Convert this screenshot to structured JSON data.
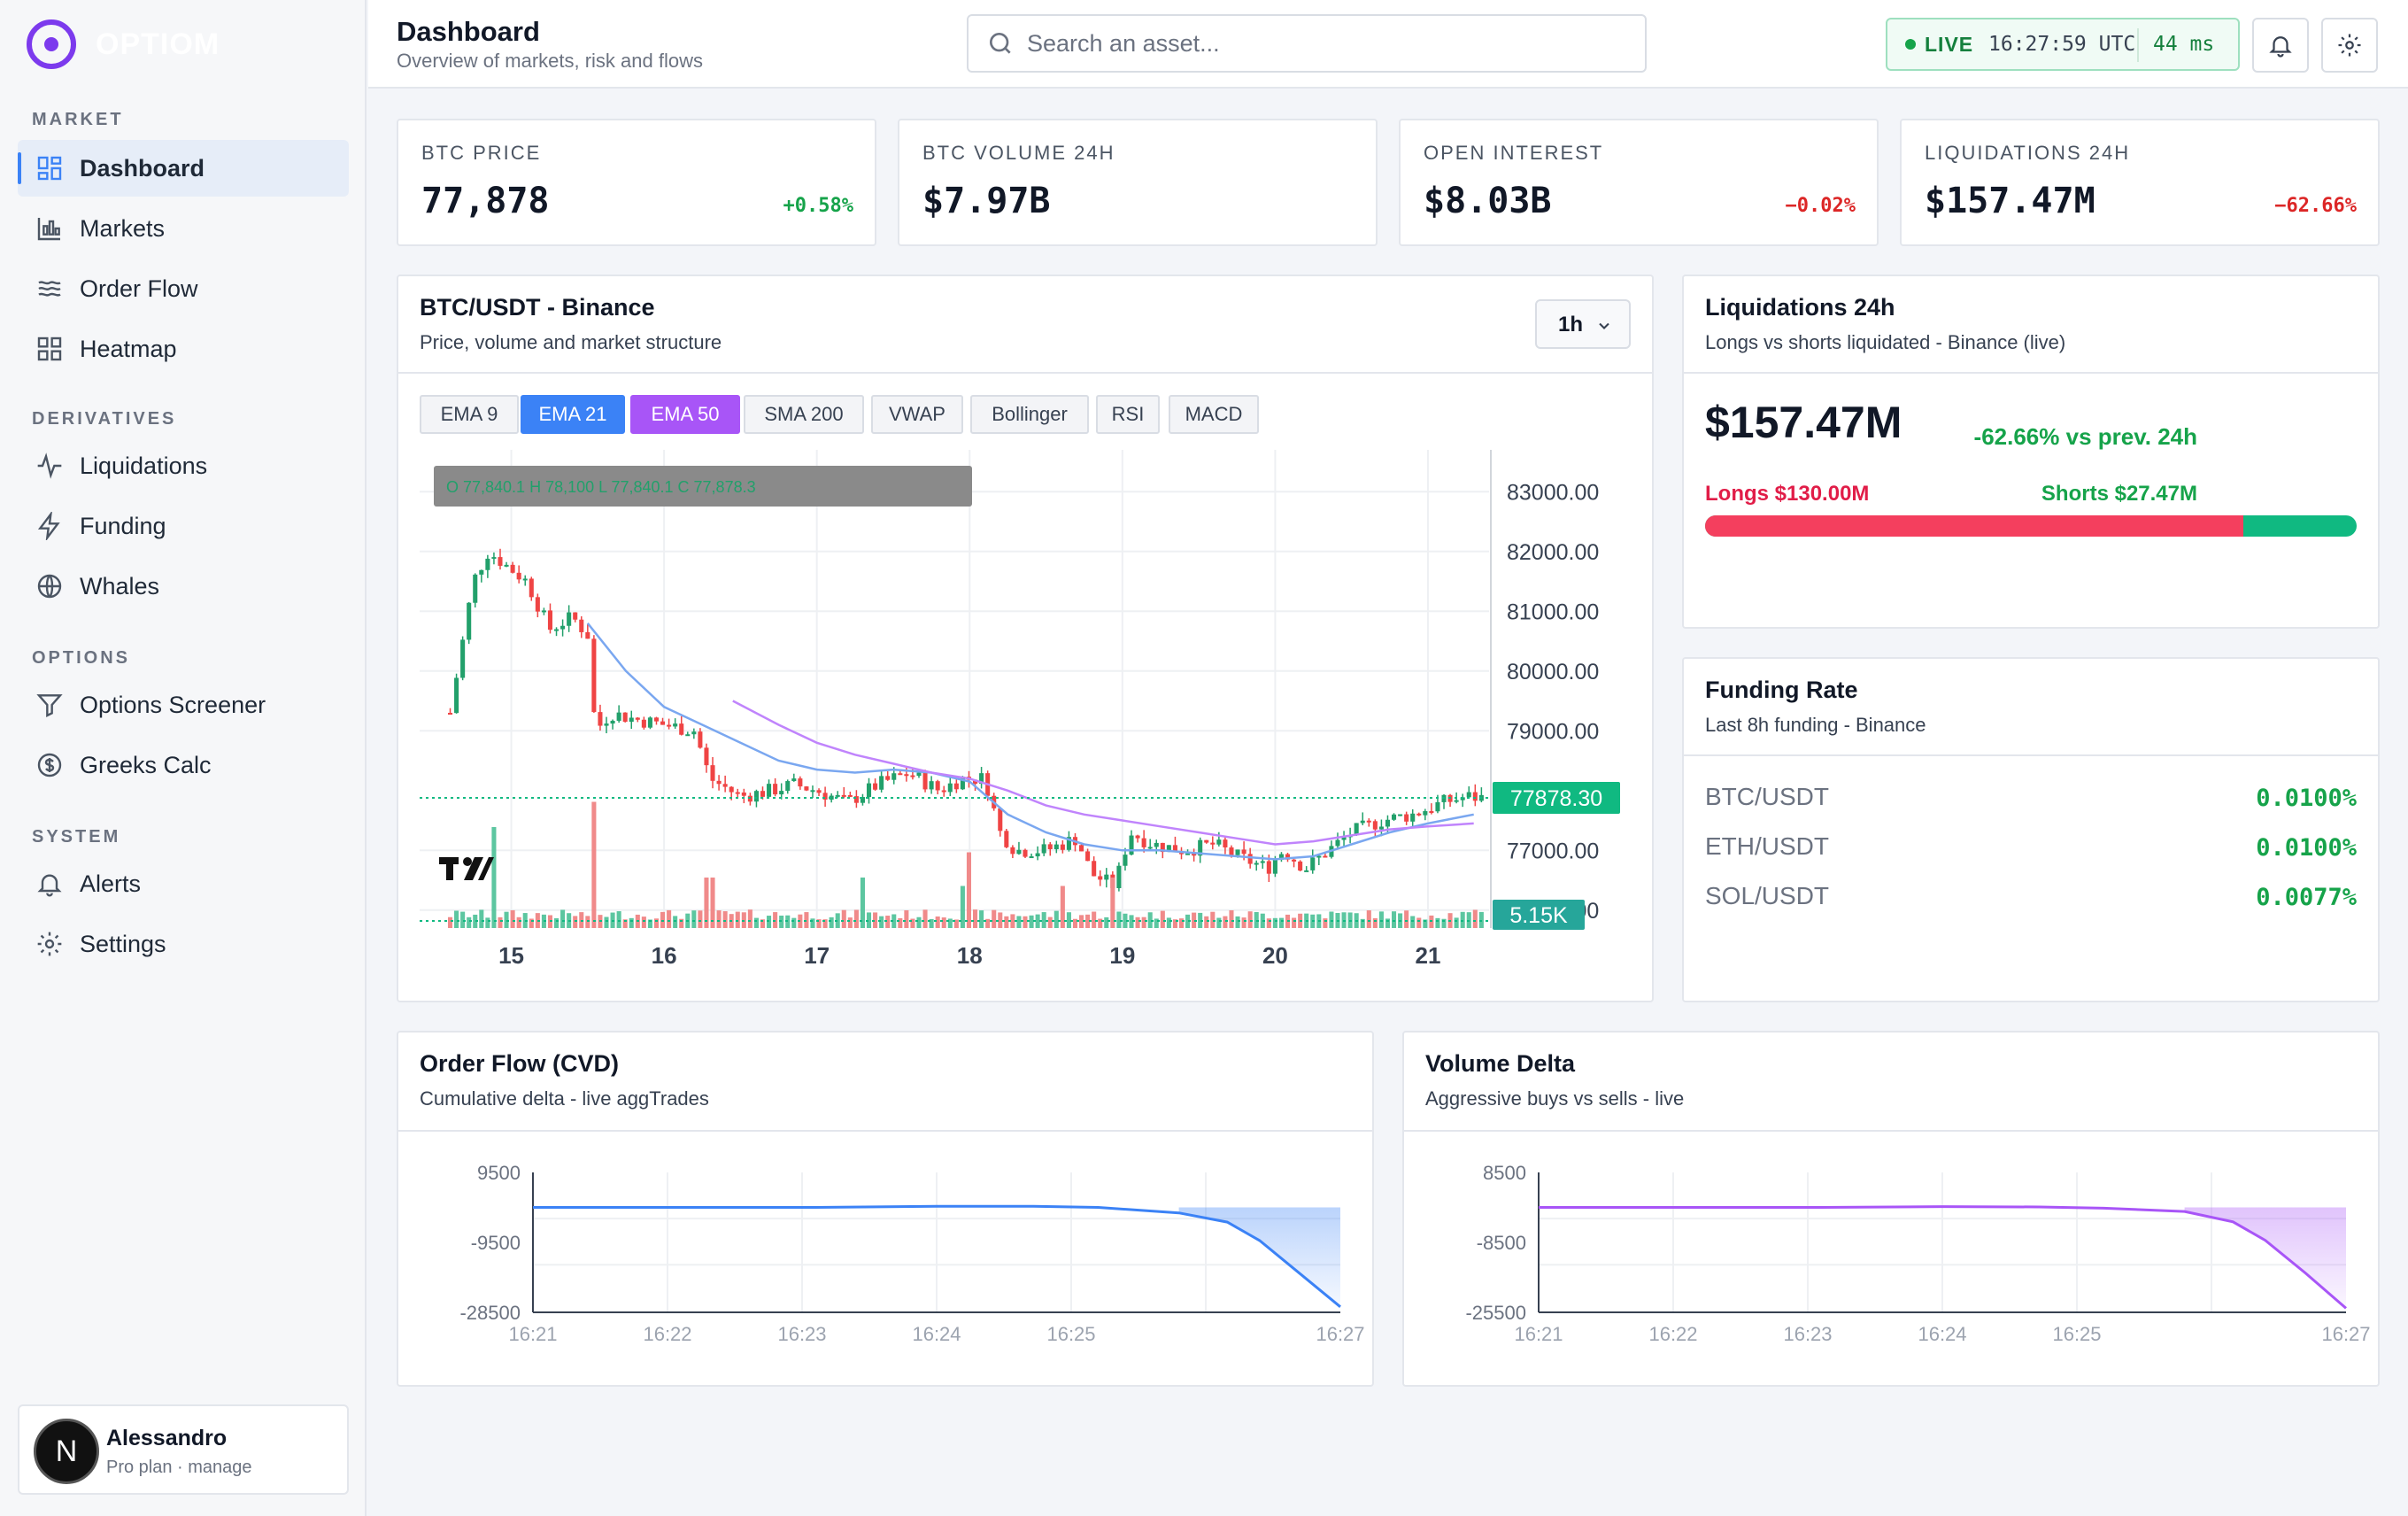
{
  "brand": {
    "name": "OPTIOM"
  },
  "sidebar": {
    "sections": [
      {
        "label": "MARKET",
        "items": [
          {
            "label": "Dashboard",
            "icon": "dashboard-icon"
          },
          {
            "label": "Markets",
            "icon": "chart-icon"
          },
          {
            "label": "Order Flow",
            "icon": "waves-icon"
          },
          {
            "label": "Heatmap",
            "icon": "grid-icon"
          }
        ]
      },
      {
        "label": "DERIVATIVES",
        "items": [
          {
            "label": "Liquidations",
            "icon": "pulse-icon"
          },
          {
            "label": "Funding",
            "icon": "bolt-icon"
          },
          {
            "label": "Whales",
            "icon": "globe-icon"
          }
        ]
      },
      {
        "label": "OPTIONS",
        "items": [
          {
            "label": "Options Screener",
            "icon": "filter-icon"
          },
          {
            "label": "Greeks Calc",
            "icon": "dollar-icon"
          }
        ]
      },
      {
        "label": "SYSTEM",
        "items": [
          {
            "label": "Alerts",
            "icon": "bell-icon"
          },
          {
            "label": "Settings",
            "icon": "gear-icon"
          }
        ]
      }
    ],
    "user": {
      "initial": "N",
      "name": "Alessandro",
      "plan": "Pro plan · manage"
    }
  },
  "header": {
    "title": "Dashboard",
    "subtitle": "Overview of markets, risk and flows",
    "search_placeholder": "Search an asset...",
    "live_label": "LIVE",
    "time": "16:27:59 UTC",
    "latency": "44 ms"
  },
  "stats": [
    {
      "label": "BTC PRICE",
      "value": "77,878",
      "change": "+0.58%",
      "direction": "up"
    },
    {
      "label": "BTC VOLUME 24H",
      "value": "$7.97B",
      "change": "",
      "direction": "up"
    },
    {
      "label": "OPEN INTEREST",
      "value": "$8.03B",
      "change": "−0.02%",
      "direction": "down"
    },
    {
      "label": "LIQUIDATIONS 24H",
      "value": "$157.47M",
      "change": "−62.66%",
      "direction": "down"
    }
  ],
  "price_chart": {
    "title": "BTC/USDT - Binance",
    "subtitle": "Price, volume and market structure",
    "interval": "1h",
    "indicators": [
      {
        "label": "EMA 9",
        "active": false,
        "color": ""
      },
      {
        "label": "EMA 21",
        "active": true,
        "color": "#3b82f6"
      },
      {
        "label": "EMA 50",
        "active": true,
        "color": "#a855f7"
      },
      {
        "label": "SMA 200",
        "active": false,
        "color": ""
      },
      {
        "label": "VWAP",
        "active": false,
        "color": ""
      },
      {
        "label": "Bollinger",
        "active": false,
        "color": ""
      },
      {
        "label": "RSI",
        "active": false,
        "color": ""
      },
      {
        "label": "MACD",
        "active": false,
        "color": ""
      }
    ],
    "ohlc_legend": "O 77,840.1  H 78,100  L 77,840.1  C 77,878.3",
    "last_price_label": "77878.30",
    "last_volume_label": "5.15K",
    "chart_data": {
      "type": "candlestick",
      "y_ticks": [
        "83000.00",
        "82000.00",
        "81000.00",
        "80000.00",
        "79000.00",
        "77000.00",
        "76000.00"
      ],
      "y_range": [
        75700,
        83700
      ],
      "x_ticks": [
        "15",
        "16",
        "17",
        "18",
        "19",
        "20",
        "21"
      ],
      "last_price": 77878.3,
      "close_path": [
        [
          14.6,
          79300
        ],
        [
          14.75,
          81500
        ],
        [
          14.85,
          82000
        ],
        [
          14.95,
          81800
        ],
        [
          15.1,
          81500
        ],
        [
          15.25,
          80700
        ],
        [
          15.4,
          80900
        ],
        [
          15.5,
          80600
        ],
        [
          15.55,
          79000
        ],
        [
          15.65,
          79300
        ],
        [
          15.8,
          79200
        ],
        [
          16.0,
          79100
        ],
        [
          16.2,
          79000
        ],
        [
          16.3,
          78200
        ],
        [
          16.5,
          77900
        ],
        [
          16.7,
          78000
        ],
        [
          16.85,
          78100
        ],
        [
          17.0,
          78000
        ],
        [
          17.2,
          77800
        ],
        [
          17.4,
          78100
        ],
        [
          17.6,
          78300
        ],
        [
          17.8,
          78000
        ],
        [
          17.95,
          78200
        ],
        [
          18.1,
          78200
        ],
        [
          18.2,
          77300
        ],
        [
          18.3,
          77000
        ],
        [
          18.5,
          77000
        ],
        [
          18.7,
          77200
        ],
        [
          18.8,
          76600
        ],
        [
          18.95,
          76400
        ],
        [
          19.05,
          77300
        ],
        [
          19.2,
          77100
        ],
        [
          19.4,
          77000
        ],
        [
          19.6,
          77100
        ],
        [
          19.75,
          76900
        ],
        [
          19.95,
          76700
        ],
        [
          20.05,
          77000
        ],
        [
          20.2,
          76700
        ],
        [
          20.35,
          77000
        ],
        [
          20.5,
          77300
        ],
        [
          20.7,
          77500
        ],
        [
          20.9,
          77600
        ],
        [
          21.1,
          77800
        ],
        [
          21.25,
          77900
        ],
        [
          21.35,
          77878
        ]
      ],
      "volume_spikes": [
        [
          14.9,
          0.6
        ],
        [
          15.55,
          0.75
        ],
        [
          16.3,
          0.3
        ],
        [
          17.3,
          0.3
        ],
        [
          17.95,
          0.25
        ],
        [
          18.0,
          0.45
        ],
        [
          18.6,
          0.25
        ],
        [
          18.95,
          0.3
        ]
      ],
      "ema21": [
        [
          15.5,
          80800
        ],
        [
          15.75,
          80000
        ],
        [
          16.0,
          79400
        ],
        [
          16.25,
          79100
        ],
        [
          16.5,
          78800
        ],
        [
          16.75,
          78500
        ],
        [
          17.0,
          78350
        ],
        [
          17.25,
          78300
        ],
        [
          17.5,
          78350
        ],
        [
          17.75,
          78300
        ],
        [
          18.0,
          78150
        ],
        [
          18.25,
          77600
        ],
        [
          18.5,
          77300
        ],
        [
          18.75,
          77100
        ],
        [
          19.0,
          77000
        ],
        [
          19.25,
          77000
        ],
        [
          19.5,
          76950
        ],
        [
          19.75,
          76900
        ],
        [
          20.0,
          76850
        ],
        [
          20.25,
          76900
        ],
        [
          20.5,
          77100
        ],
        [
          20.75,
          77300
        ],
        [
          21.0,
          77450
        ],
        [
          21.2,
          77550
        ],
        [
          21.3,
          77600
        ]
      ],
      "ema50": [
        [
          16.45,
          79500
        ],
        [
          16.75,
          79100
        ],
        [
          17.0,
          78800
        ],
        [
          17.25,
          78600
        ],
        [
          17.5,
          78450
        ],
        [
          17.75,
          78300
        ],
        [
          18.0,
          78200
        ],
        [
          18.25,
          78000
        ],
        [
          18.5,
          77750
        ],
        [
          18.75,
          77600
        ],
        [
          19.0,
          77500
        ],
        [
          19.25,
          77400
        ],
        [
          19.5,
          77300
        ],
        [
          19.75,
          77200
        ],
        [
          20.0,
          77100
        ],
        [
          20.25,
          77150
        ],
        [
          20.5,
          77250
        ],
        [
          20.75,
          77350
        ],
        [
          21.0,
          77400
        ],
        [
          21.3,
          77450
        ]
      ]
    }
  },
  "liquidations": {
    "title": "Liquidations 24h",
    "subtitle": "Longs vs shorts liquidated - Binance (live)",
    "total": "$157.47M",
    "vs_prev": "-62.66% vs prev. 24h",
    "longs_label": "Longs $130.00M",
    "shorts_label": "Shorts $27.47M",
    "longs_value": 130.0,
    "shorts_value": 27.47,
    "longs_color": "#f43f5e",
    "shorts_color": "#10b981"
  },
  "funding": {
    "title": "Funding Rate",
    "subtitle": "Last 8h funding - Binance",
    "rows": [
      {
        "symbol": "BTC/USDT",
        "rate": "0.0100%"
      },
      {
        "symbol": "ETH/USDT",
        "rate": "0.0100%"
      },
      {
        "symbol": "SOL/USDT",
        "rate": "0.0077%"
      }
    ]
  },
  "cvd": {
    "title": "Order Flow (CVD)",
    "subtitle": "Cumulative delta - live aggTrades",
    "chart_data": {
      "type": "area",
      "color": "#3b82f6",
      "y_ticks": [
        "9500",
        "-9500",
        "-28500"
      ],
      "y_range": [
        -28500,
        9500
      ],
      "x_ticks": [
        "16:21",
        "16:22",
        "16:23",
        "16:24",
        "16:25",
        "16:27"
      ],
      "points": [
        [
          0,
          0
        ],
        [
          0.2,
          0
        ],
        [
          0.35,
          0
        ],
        [
          0.5,
          300
        ],
        [
          0.62,
          300
        ],
        [
          0.7,
          0
        ],
        [
          0.8,
          -1500
        ],
        [
          0.86,
          -4000
        ],
        [
          0.9,
          -9000
        ],
        [
          0.95,
          -18000
        ],
        [
          1.0,
          -27000
        ]
      ]
    }
  },
  "volume_delta": {
    "title": "Volume Delta",
    "subtitle": "Aggressive buys vs sells - live",
    "chart_data": {
      "type": "area",
      "color": "#a855f7",
      "y_ticks": [
        "8500",
        "-8500",
        "-25500"
      ],
      "y_range": [
        -25500,
        8500
      ],
      "x_ticks": [
        "16:21",
        "16:22",
        "16:23",
        "16:24",
        "16:25",
        "16:27"
      ],
      "points": [
        [
          0,
          0
        ],
        [
          0.2,
          0
        ],
        [
          0.35,
          0
        ],
        [
          0.5,
          200
        ],
        [
          0.62,
          100
        ],
        [
          0.7,
          -200
        ],
        [
          0.8,
          -1000
        ],
        [
          0.86,
          -3500
        ],
        [
          0.9,
          -8000
        ],
        [
          0.95,
          -16000
        ],
        [
          1.0,
          -24500
        ]
      ]
    }
  }
}
